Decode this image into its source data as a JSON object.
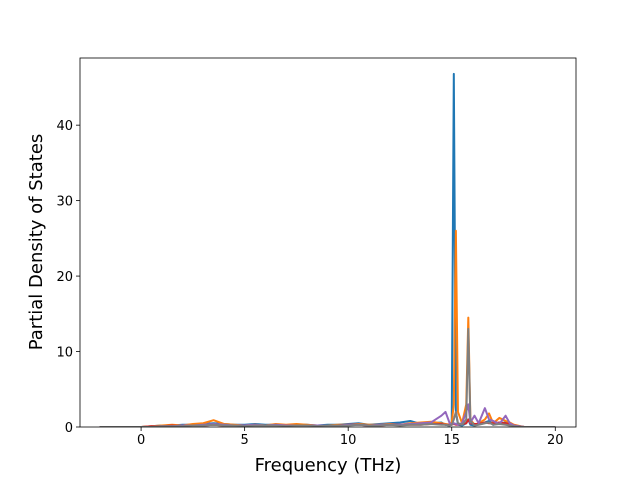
{
  "chart_data": {
    "type": "line",
    "x_label": "Frequency (THz)",
    "y_label": "Partial Density of States",
    "xlim": [
      -2.95,
      21.0
    ],
    "ylim": [
      0,
      48.9
    ],
    "xticks": [
      0,
      5,
      10,
      15,
      20
    ],
    "yticks": [
      0,
      10,
      20,
      30,
      40
    ],
    "x": [
      -2,
      -1,
      0,
      0.5,
      1,
      1.5,
      2,
      2.5,
      3,
      3.5,
      4,
      4.5,
      5,
      5.5,
      6,
      6.5,
      7,
      7.5,
      8,
      8.5,
      9,
      9.5,
      10,
      10.5,
      11,
      11.5,
      12,
      12.5,
      13,
      13.5,
      14,
      14.5,
      14.7,
      14.9,
      15.0,
      15.1,
      15.2,
      15.3,
      15.5,
      15.7,
      15.8,
      15.9,
      16.1,
      16.3,
      16.6,
      16.8,
      17.0,
      17.3,
      17.6,
      17.8,
      18.0,
      18.5,
      19,
      20
    ],
    "series": [
      {
        "color": "#1f77b4",
        "values": [
          0,
          0,
          0,
          0.1,
          0.2,
          0.2,
          0.3,
          0.3,
          0.4,
          0.5,
          0.4,
          0.3,
          0.3,
          0.4,
          0.3,
          0.3,
          0.2,
          0.3,
          0.3,
          0.2,
          0.3,
          0.3,
          0.4,
          0.5,
          0.3,
          0.4,
          0.5,
          0.6,
          0.8,
          0.4,
          0.5,
          0.6,
          0.3,
          0.2,
          0.5,
          46.8,
          2,
          0.3,
          0.2,
          0.5,
          1,
          0.3,
          0.2,
          0.4,
          0.6,
          0.8,
          0.3,
          0.5,
          0.6,
          0.4,
          0.2,
          0,
          0,
          0
        ]
      },
      {
        "color": "#ff7f0e",
        "values": [
          0,
          0,
          0,
          0.1,
          0.2,
          0.3,
          0.2,
          0.4,
          0.5,
          0.9,
          0.4,
          0.3,
          0.2,
          0.3,
          0.2,
          0.4,
          0.3,
          0.4,
          0.3,
          0.2,
          0.2,
          0.3,
          0.3,
          0.4,
          0.3,
          0.3,
          0.4,
          0.3,
          0.5,
          0.6,
          0.7,
          0.5,
          0.4,
          0.3,
          0.6,
          3,
          26,
          2,
          0.5,
          3,
          14.5,
          1,
          0.3,
          0.5,
          1,
          1.8,
          0.5,
          1.2,
          0.8,
          0.6,
          0.3,
          0,
          0,
          0
        ]
      },
      {
        "color": "#d62728",
        "values": [
          0,
          0,
          0,
          0.1,
          0.1,
          0.2,
          0.1,
          0.2,
          0.2,
          0.3,
          0.2,
          0.2,
          0.2,
          0.2,
          0.2,
          0.2,
          0.2,
          0.2,
          0.2,
          0.2,
          0.2,
          0.2,
          0.3,
          0.3,
          0.2,
          0.2,
          0.3,
          0.3,
          0.3,
          0.3,
          0.4,
          0.4,
          0.3,
          0.3,
          0.3,
          0.4,
          0.3,
          0.3,
          0.4,
          0.5,
          1,
          0.5,
          0.4,
          0.4,
          0.6,
          0.5,
          0.5,
          0.6,
          0.5,
          0.4,
          0.2,
          0,
          0,
          0
        ]
      },
      {
        "color": "#9467bd",
        "values": [
          0,
          0,
          0,
          0,
          0.1,
          0.1,
          0.2,
          0.2,
          0.3,
          0.4,
          0.3,
          0.2,
          0.2,
          0.3,
          0.2,
          0.3,
          0.2,
          0.2,
          0.2,
          0.2,
          0.2,
          0.2,
          0.3,
          0.3,
          0.2,
          0.3,
          0.3,
          0.3,
          0.4,
          0.5,
          0.6,
          1.5,
          2,
          0.5,
          0.3,
          0.5,
          0.4,
          0.3,
          0.5,
          2,
          3,
          0.6,
          1.5,
          0.5,
          2.5,
          1,
          0.8,
          0.4,
          1.5,
          0.5,
          0.2,
          0,
          0,
          0
        ]
      },
      {
        "color": "#7f7f7f",
        "values": [
          0,
          0,
          0,
          0,
          0.1,
          0.1,
          0.1,
          0.2,
          0.2,
          0.3,
          0.2,
          0.2,
          0.1,
          0.2,
          0.2,
          0.2,
          0.1,
          0.2,
          0.2,
          0.1,
          0.2,
          0.2,
          0.2,
          0.3,
          0.2,
          0.2,
          0.3,
          0.2,
          0.3,
          0.3,
          0.4,
          0.3,
          0.3,
          0.2,
          0.3,
          1,
          2,
          0.5,
          0.3,
          1,
          13,
          0.8,
          0.2,
          0.3,
          0.5,
          0.6,
          0.3,
          0.4,
          0.3,
          0.2,
          0.1,
          0,
          0,
          0
        ]
      }
    ]
  }
}
